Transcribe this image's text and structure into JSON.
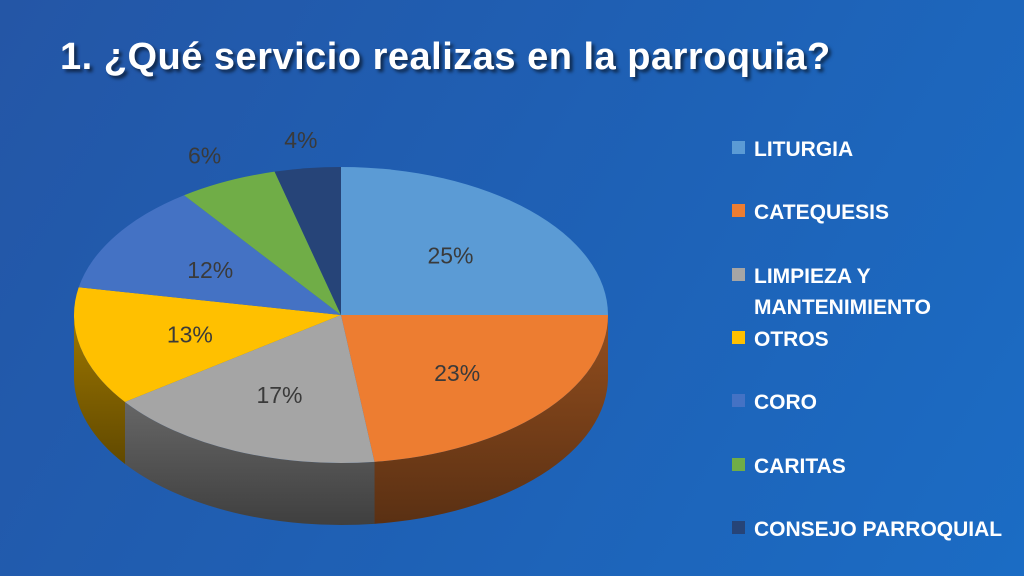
{
  "slide": {
    "title": "1. ¿Qué servicio realizas en la parroquia?"
  },
  "chart_data": {
    "type": "pie",
    "title": "",
    "categories": [
      "LITURGIA",
      "CATEQUESIS",
      "LIMPIEZA Y MANTENIMIENTO",
      "OTROS",
      "CORO",
      "CARITAS",
      "CONSEJO PARROQUIAL"
    ],
    "values": [
      25,
      23,
      17,
      13,
      12,
      6,
      4
    ],
    "labels": [
      "25%",
      "23%",
      "17%",
      "13%",
      "12%",
      "6%",
      "4%"
    ],
    "colors": [
      "#5b9bd5",
      "#ed7d31",
      "#a5a5a5",
      "#ffc000",
      "#4472c4",
      "#70ad47",
      "#264478"
    ],
    "style": "3D pie",
    "legend_position": "right"
  }
}
